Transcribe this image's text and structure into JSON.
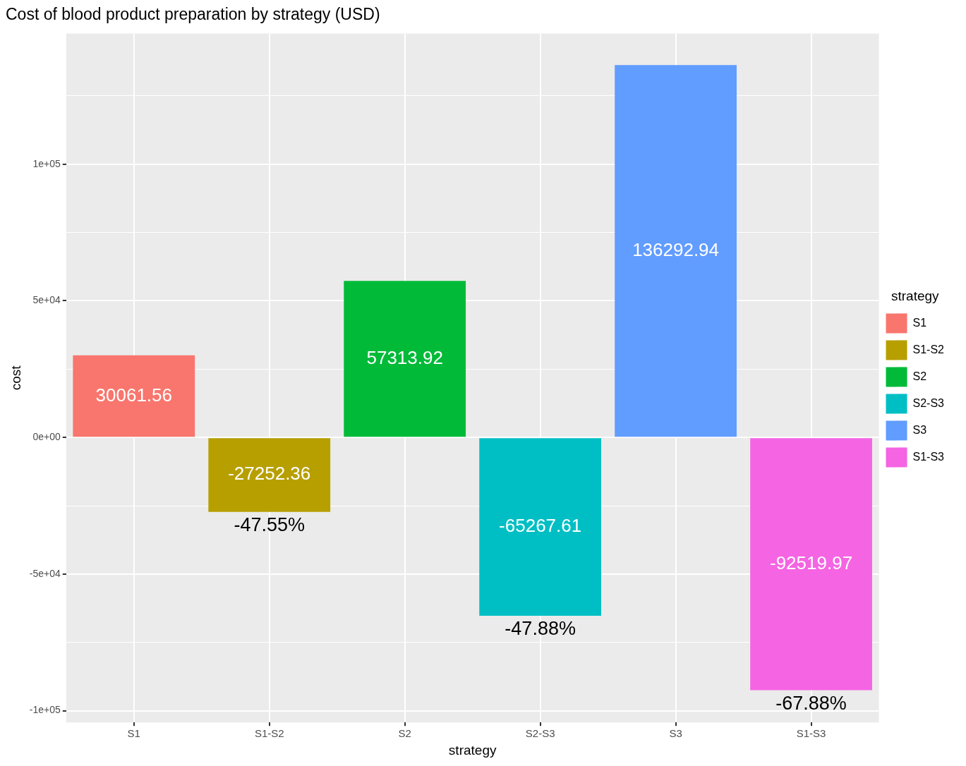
{
  "chart_data": {
    "type": "bar",
    "title": "Cost of blood product preparation by strategy (USD)",
    "xlabel": "strategy",
    "ylabel": "cost",
    "legend_title": "strategy",
    "categories": [
      "S1",
      "S1-S2",
      "S2",
      "S2-S3",
      "S3",
      "S1-S3"
    ],
    "series": [
      {
        "name": "S1",
        "color": "#f8766d",
        "values": [
          30061.56,
          null,
          null,
          null,
          null,
          null
        ]
      },
      {
        "name": "S1-S2",
        "color": "#b79f00",
        "values": [
          null,
          -27252.36,
          null,
          null,
          null,
          null
        ]
      },
      {
        "name": "S2",
        "color": "#00ba38",
        "values": [
          null,
          null,
          57313.92,
          null,
          null,
          null
        ]
      },
      {
        "name": "S2-S3",
        "color": "#00bfc4",
        "values": [
          null,
          null,
          null,
          -65267.61,
          null,
          null
        ]
      },
      {
        "name": "S3",
        "color": "#619cff",
        "values": [
          null,
          null,
          null,
          null,
          136292.94,
          null
        ]
      },
      {
        "name": "S1-S3",
        "color": "#f564e3",
        "values": [
          null,
          null,
          null,
          null,
          null,
          -92519.97
        ]
      }
    ],
    "ylim": [
      -104300,
      147800
    ],
    "yticks": [
      {
        "value": -100000,
        "label": "-1e+05"
      },
      {
        "value": -75000,
        "label": null
      },
      {
        "value": -50000,
        "label": "-5e+04"
      },
      {
        "value": -25000,
        "label": null
      },
      {
        "value": 0,
        "label": "0e+00"
      },
      {
        "value": 25000,
        "label": null
      },
      {
        "value": 50000,
        "label": "5e+04"
      },
      {
        "value": 75000,
        "label": null
      },
      {
        "value": 100000,
        "label": "1e+05"
      },
      {
        "value": 125000,
        "label": null
      }
    ],
    "data_labels": true,
    "annotations": [
      {
        "text": "-47.55%",
        "x": "S1-S2",
        "y": -27252.36
      },
      {
        "text": "-47.88%",
        "x": "S2-S3",
        "y": -65267.61
      },
      {
        "text": "-67.88%",
        "x": "S1-S3",
        "y": -92519.97
      }
    ],
    "grid": true,
    "legend": "right"
  }
}
